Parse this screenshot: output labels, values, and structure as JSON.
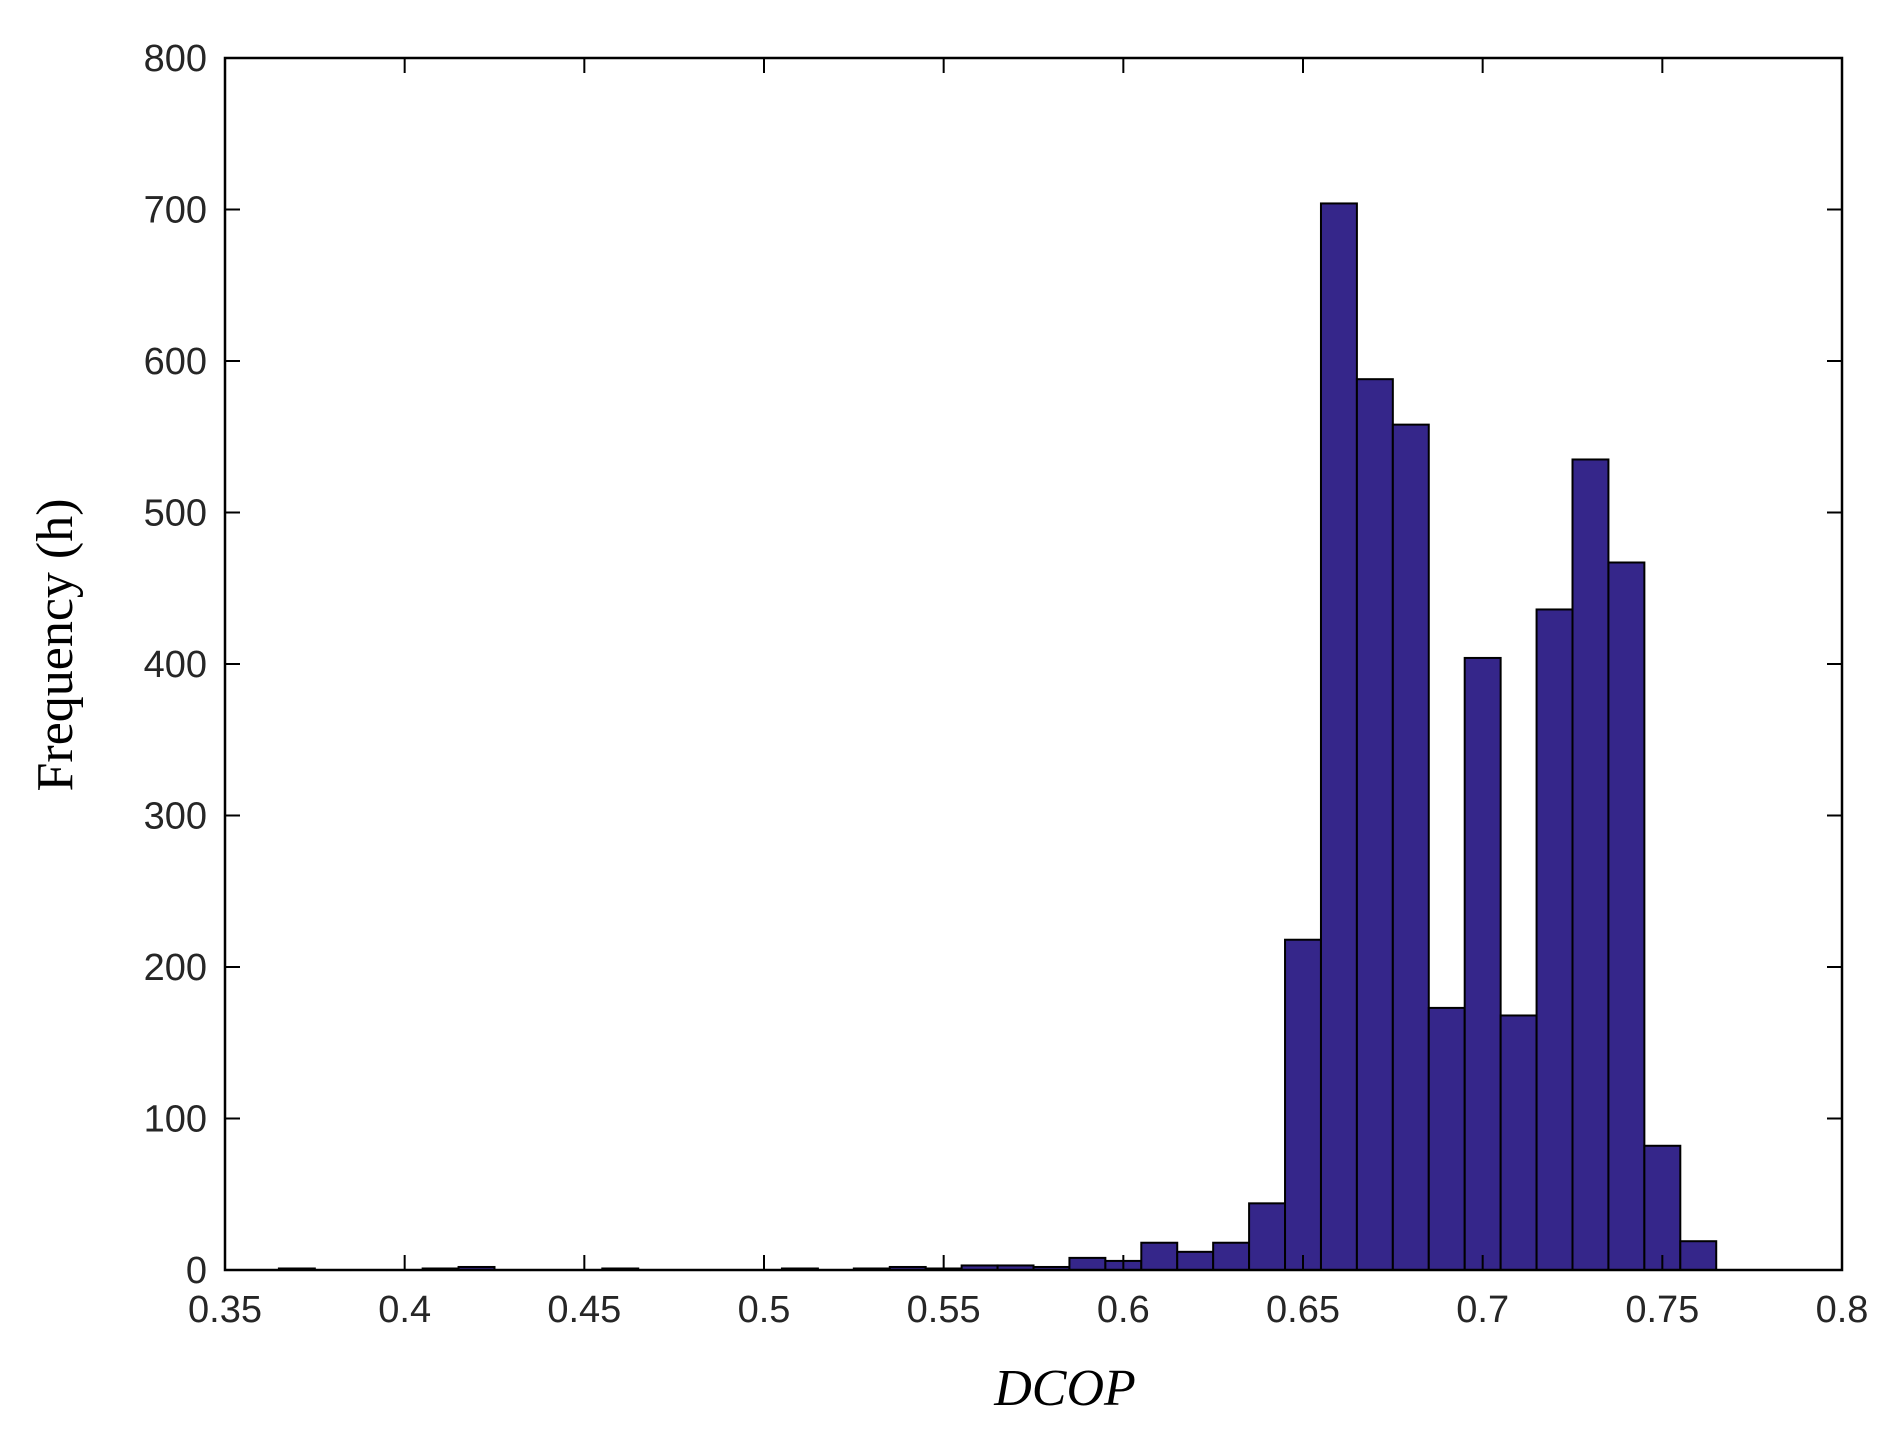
{
  "chart_data": {
    "type": "bar",
    "subtype": "histogram",
    "xlabel": "DCOP",
    "ylabel": "Frequency  (h)",
    "xlim": [
      0.35,
      0.8
    ],
    "ylim": [
      0,
      800
    ],
    "xticks": [
      0.35,
      0.4,
      0.45,
      0.5,
      0.55,
      0.6,
      0.65,
      0.7,
      0.75,
      0.8
    ],
    "xtick_labels": [
      "0.35",
      "0.4",
      "0.45",
      "0.5",
      "0.55",
      "0.6",
      "0.65",
      "0.7",
      "0.75",
      "0.8"
    ],
    "yticks": [
      0,
      100,
      200,
      300,
      400,
      500,
      600,
      700,
      800
    ],
    "ytick_labels": [
      "0",
      "100",
      "200",
      "300",
      "400",
      "500",
      "600",
      "700",
      "800"
    ],
    "bin_width": 0.01,
    "bins": [
      {
        "x0": 0.365,
        "value": 1
      },
      {
        "x0": 0.375,
        "value": 0
      },
      {
        "x0": 0.385,
        "value": 0
      },
      {
        "x0": 0.395,
        "value": 0
      },
      {
        "x0": 0.405,
        "value": 1
      },
      {
        "x0": 0.415,
        "value": 2
      },
      {
        "x0": 0.425,
        "value": 0
      },
      {
        "x0": 0.435,
        "value": 0
      },
      {
        "x0": 0.445,
        "value": 0
      },
      {
        "x0": 0.455,
        "value": 1
      },
      {
        "x0": 0.465,
        "value": 0
      },
      {
        "x0": 0.475,
        "value": 0
      },
      {
        "x0": 0.485,
        "value": 0
      },
      {
        "x0": 0.495,
        "value": 0
      },
      {
        "x0": 0.505,
        "value": 1
      },
      {
        "x0": 0.515,
        "value": 0
      },
      {
        "x0": 0.525,
        "value": 1
      },
      {
        "x0": 0.535,
        "value": 2
      },
      {
        "x0": 0.545,
        "value": 1
      },
      {
        "x0": 0.555,
        "value": 3
      },
      {
        "x0": 0.565,
        "value": 3
      },
      {
        "x0": 0.575,
        "value": 2
      },
      {
        "x0": 0.585,
        "value": 8
      },
      {
        "x0": 0.595,
        "value": 6
      },
      {
        "x0": 0.605,
        "value": 18
      },
      {
        "x0": 0.615,
        "value": 12
      },
      {
        "x0": 0.625,
        "value": 18
      },
      {
        "x0": 0.635,
        "value": 44
      },
      {
        "x0": 0.645,
        "value": 218
      },
      {
        "x0": 0.655,
        "value": 704
      },
      {
        "x0": 0.665,
        "value": 588
      },
      {
        "x0": 0.675,
        "value": 558
      },
      {
        "x0": 0.685,
        "value": 173
      },
      {
        "x0": 0.695,
        "value": 404
      },
      {
        "x0": 0.705,
        "value": 168
      },
      {
        "x0": 0.715,
        "value": 436
      },
      {
        "x0": 0.725,
        "value": 535
      },
      {
        "x0": 0.735,
        "value": 467
      },
      {
        "x0": 0.745,
        "value": 82
      },
      {
        "x0": 0.755,
        "value": 19
      }
    ],
    "bar_color": "#35268A",
    "bar_edge_color": "#000000",
    "grid": false,
    "legend": false
  }
}
